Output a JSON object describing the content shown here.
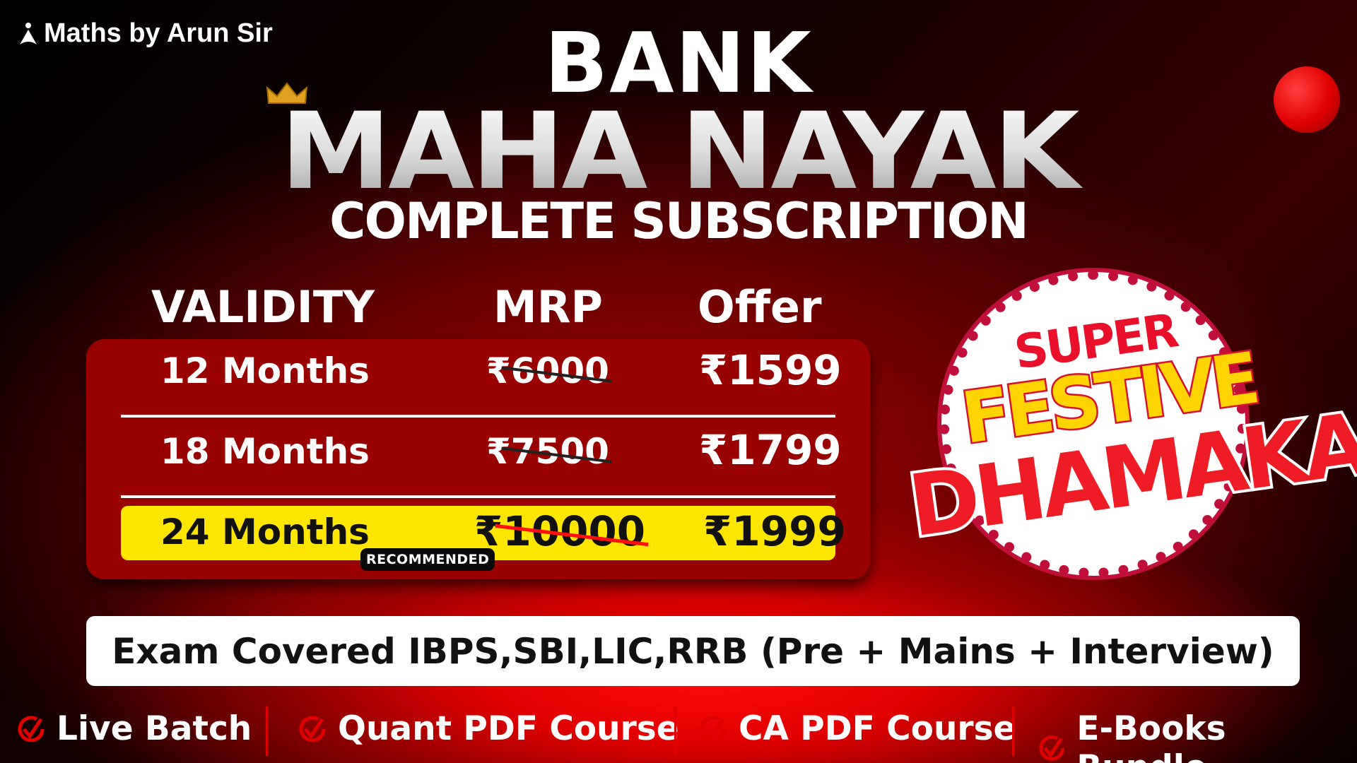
{
  "brand": {
    "logo_text": "Maths by Arun Sir"
  },
  "title": {
    "line1": "BANK",
    "line2": "MAHA NAYAK",
    "line3": "COMPLETE SUBSCRIPTION"
  },
  "table": {
    "headers": [
      "VALIDITY",
      "MRP",
      "Offer"
    ],
    "rows": [
      {
        "validity": "12 Months",
        "mrp": "₹6000",
        "offer": "₹1599"
      },
      {
        "validity": "18 Months",
        "mrp": "₹7500",
        "offer": "₹1799"
      },
      {
        "validity": "24 Months",
        "mrp": "₹10000",
        "offer": "₹1999",
        "badge": "RECOMMENDED"
      }
    ]
  },
  "badge": {
    "line1": "SUPER",
    "line2": "FESTIVE",
    "line3": "DHAMAKA"
  },
  "exam_text": "Exam Covered IBPS,SBI,LIC,RRB (Pre + Mains + Interview)",
  "features": [
    "Live Batch",
    "Quant PDF Course",
    "CA PDF Course",
    "E-Books Bundle"
  ],
  "colors": {
    "accent_red": "#e00000",
    "table_bg": "#990000",
    "highlight_yellow": "#ffe600"
  }
}
